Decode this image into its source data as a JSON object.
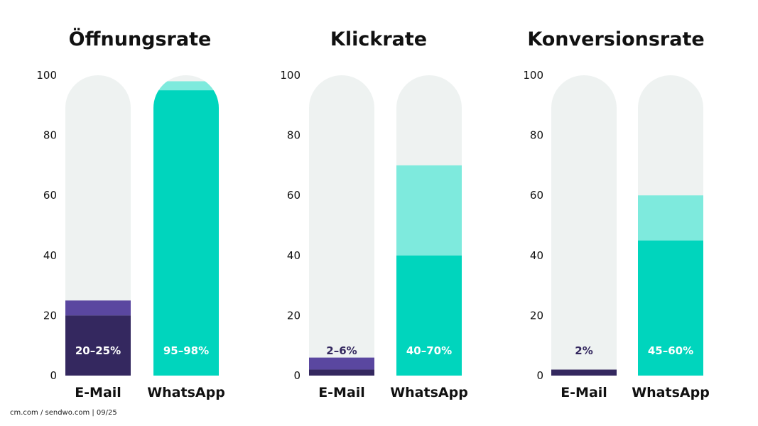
{
  "chart_data": [
    {
      "type": "bar",
      "title": "Öffnungsrate",
      "ylim": [
        0,
        100
      ],
      "yticks": [
        "0",
        "20",
        "40",
        "60",
        "80",
        "100"
      ],
      "categories": [
        "E-Mail",
        "WhatsApp"
      ],
      "ranges": [
        [
          20,
          25
        ],
        [
          95,
          98
        ]
      ],
      "labels": [
        "20–25%",
        "95–98%"
      ]
    },
    {
      "type": "bar",
      "title": "Klickrate",
      "ylim": [
        0,
        100
      ],
      "yticks": [
        "0",
        "20",
        "40",
        "60",
        "80",
        "100"
      ],
      "categories": [
        "E-Mail",
        "WhatsApp"
      ],
      "ranges": [
        [
          2,
          6
        ],
        [
          40,
          70
        ]
      ],
      "labels": [
        "2–6%",
        "40–70%"
      ]
    },
    {
      "type": "bar",
      "title": "Konversionsrate",
      "ylim": [
        0,
        100
      ],
      "yticks": [
        "0",
        "20",
        "40",
        "60",
        "80",
        "100"
      ],
      "categories": [
        "E-Mail",
        "WhatsApp"
      ],
      "ranges": [
        [
          2,
          2
        ],
        [
          45,
          60
        ]
      ],
      "labels": [
        "2%",
        "45–60%"
      ]
    }
  ],
  "colors": {
    "background_track": "#eef2f1",
    "email_low": "#34285f",
    "email_high": "#5a47a0",
    "whatsapp_low": "#00d5bd",
    "whatsapp_high": "#7eeadd",
    "label_light": "#ffffff",
    "label_dark": "#34285f"
  },
  "footer": "cm.com / sendwo.com | 09/25"
}
